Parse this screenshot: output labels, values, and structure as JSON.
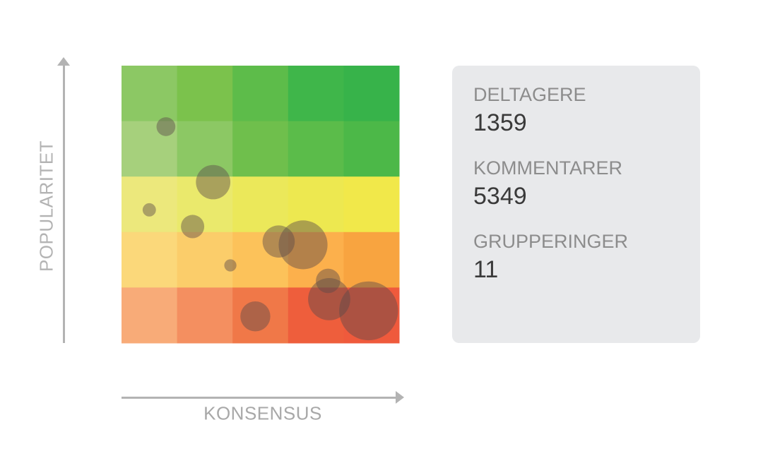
{
  "chart_data": {
    "type": "scatter",
    "title": "",
    "xlabel": "KONSENSUS",
    "ylabel": "POPULARITET",
    "xlim": [
      0,
      5
    ],
    "ylim": [
      0,
      5
    ],
    "grid": {
      "cols": 5,
      "rows": 5,
      "colors": [
        [
          "#8cc864",
          "#7bc24c",
          "#5dbc4a",
          "#3fb64a",
          "#37b34a"
        ],
        [
          "#a6d07c",
          "#8cc864",
          "#6fbf4c",
          "#5bbc4a",
          "#4cb848"
        ],
        [
          "#ece87c",
          "#eae96c",
          "#ebe85a",
          "#ede850",
          "#f1e84a"
        ],
        [
          "#fbd87a",
          "#fbcd6a",
          "#fcc25a",
          "#fcb04c",
          "#f8a440"
        ],
        [
          "#f8ab78",
          "#f48f60",
          "#f07848",
          "#ee5e3c",
          "#ef5a3c"
        ]
      ]
    },
    "bubble_color": "#5a4a4a",
    "bubble_opacity": 0.45,
    "points": [
      {
        "x": 0.8,
        "y": 3.9,
        "r": 0.17
      },
      {
        "x": 1.65,
        "y": 2.9,
        "r": 0.31
      },
      {
        "x": 0.5,
        "y": 2.4,
        "r": 0.12
      },
      {
        "x": 1.28,
        "y": 2.1,
        "r": 0.21
      },
      {
        "x": 1.96,
        "y": 1.4,
        "r": 0.11
      },
      {
        "x": 2.83,
        "y": 1.83,
        "r": 0.29
      },
      {
        "x": 3.27,
        "y": 1.77,
        "r": 0.44
      },
      {
        "x": 3.72,
        "y": 1.12,
        "r": 0.22
      },
      {
        "x": 3.74,
        "y": 0.79,
        "r": 0.38
      },
      {
        "x": 2.41,
        "y": 0.48,
        "r": 0.27
      },
      {
        "x": 4.45,
        "y": 0.58,
        "r": 0.53
      }
    ]
  },
  "stats": [
    {
      "label": "DELTAGERE",
      "value": "1359"
    },
    {
      "label": "KOMMENTARER",
      "value": "5349"
    },
    {
      "label": "GRUPPERINGER",
      "value": "11"
    }
  ]
}
